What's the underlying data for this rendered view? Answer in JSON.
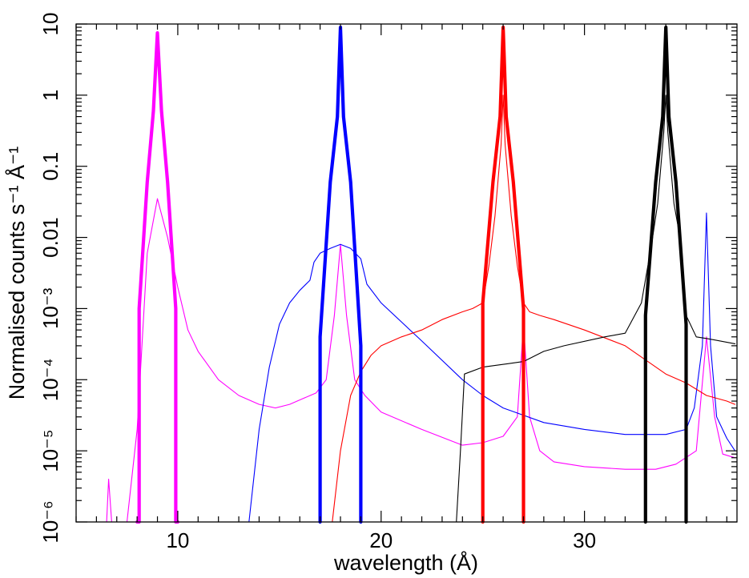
{
  "chart_data": {
    "type": "line",
    "xlabel": "wavelength (Å)",
    "ylabel": "Normalised counts s⁻¹ Å⁻¹",
    "xlim": [
      5,
      37.5
    ],
    "ylim": [
      1e-06,
      10
    ],
    "yscale": "log",
    "xticks": [
      10,
      20,
      30
    ],
    "xtick_labels": [
      "10",
      "20",
      "30"
    ],
    "yticks": [
      1e-06,
      1e-05,
      0.0001,
      0.001,
      0.01,
      0.1,
      1,
      10
    ],
    "ytick_labels": [
      "10⁻⁶",
      "10⁻⁵",
      "10⁻⁴",
      "10⁻³",
      "0.01",
      "0.1",
      "1",
      "10"
    ],
    "grid": false,
    "legend": "none",
    "series": [
      {
        "color": "#ff00ff",
        "style": "thick",
        "x": [
          8.0,
          8.1,
          8.1,
          8.5,
          8.8,
          9.0,
          9.2,
          9.5,
          9.9,
          9.9,
          10.0
        ],
        "y": [
          1e-06,
          1e-06,
          0.001,
          0.06,
          0.6,
          7.5,
          0.6,
          0.06,
          0.001,
          1e-06,
          1e-06
        ]
      },
      {
        "color": "#0000ff",
        "style": "thick",
        "x": [
          17.0,
          17.0,
          17.5,
          17.85,
          18.0,
          18.15,
          18.5,
          19.0,
          19.0
        ],
        "y": [
          1e-06,
          0.0004,
          0.06,
          0.5,
          9.0,
          0.5,
          0.06,
          0.0003,
          1e-06
        ]
      },
      {
        "color": "#ff0000",
        "style": "thick",
        "x": [
          25.0,
          25.0,
          25.5,
          25.85,
          26.0,
          26.15,
          26.5,
          27.0,
          27.0
        ],
        "y": [
          1e-06,
          0.0012,
          0.06,
          0.5,
          9.0,
          0.5,
          0.06,
          0.001,
          1e-06
        ]
      },
      {
        "color": "#000000",
        "style": "thick",
        "x": [
          33.0,
          33.0,
          33.5,
          33.85,
          34.0,
          34.15,
          34.5,
          35.0,
          35.0
        ],
        "y": [
          1e-06,
          0.0008,
          0.06,
          0.5,
          9.0,
          0.5,
          0.06,
          0.0006,
          1e-06
        ]
      },
      {
        "color": "#ff00ff",
        "style": "thin",
        "x": [
          6.5,
          6.6,
          6.75,
          7.5,
          8.0,
          8.5,
          9.0,
          9.5,
          10.0,
          10.5,
          11.0,
          12.0,
          13.0,
          14.0,
          14.8,
          15.5,
          16.2,
          16.8,
          17.3,
          17.7,
          18.0,
          18.3,
          18.7,
          19.2,
          20.0,
          22.0,
          24.0,
          25.0,
          26.0,
          26.7,
          27.0,
          27.3,
          27.8,
          28.5,
          30.0,
          32.0,
          33.5,
          34.5,
          35.5,
          36.0,
          36.4,
          36.8,
          37.4
        ],
        "y": [
          1e-06,
          4e-06,
          1e-06,
          1e-06,
          2e-05,
          0.006,
          0.035,
          0.01,
          0.002,
          0.0005,
          0.00025,
          0.0001,
          6e-05,
          4.5e-05,
          4e-05,
          4.5e-05,
          5.5e-05,
          6.5e-05,
          0.0001,
          0.0008,
          0.008,
          0.0008,
          0.0001,
          6e-05,
          3.5e-05,
          2e-05,
          1.2e-05,
          1.3e-05,
          1.6e-05,
          3e-05,
          0.0006,
          3e-05,
          1e-05,
          7e-06,
          6e-06,
          5.5e-06,
          5.5e-06,
          6.5e-06,
          1e-05,
          0.0004,
          3e-05,
          9e-06,
          8e-06
        ]
      },
      {
        "color": "#0000ff",
        "style": "thin",
        "x": [
          13.5,
          14.0,
          14.5,
          15.0,
          15.5,
          16.0,
          16.5,
          16.7,
          17.0,
          17.5,
          18.0,
          18.5,
          19.0,
          19.3,
          20.0,
          22.0,
          24.0,
          25.0,
          26.0,
          28.0,
          30.0,
          32.0,
          34.0,
          35.0,
          35.4,
          35.8,
          36.0,
          36.2,
          36.5,
          37.0,
          37.4
        ],
        "y": [
          1e-06,
          2e-05,
          0.00015,
          0.0006,
          0.0012,
          0.0018,
          0.0025,
          0.0045,
          0.006,
          0.007,
          0.008,
          0.007,
          0.005,
          0.0022,
          0.0012,
          0.00035,
          0.0001,
          6e-05,
          4e-05,
          2.5e-05,
          2e-05,
          1.7e-05,
          1.7e-05,
          2e-05,
          4e-05,
          0.0003,
          0.022,
          0.0003,
          3e-05,
          1.5e-05,
          1e-05
        ]
      },
      {
        "color": "#ff0000",
        "style": "thin",
        "x": [
          17.6,
          18.0,
          18.5,
          19.0,
          19.5,
          20.0,
          21.0,
          22.0,
          23.0,
          24.0,
          24.5,
          25.0,
          25.3,
          25.6,
          25.9,
          26.0,
          26.1,
          26.4,
          26.7,
          27.0,
          27.3,
          27.8,
          28.5,
          30.0,
          32.0,
          34.0,
          35.0,
          36.0,
          37.0,
          37.4
        ],
        "y": [
          1e-06,
          1e-05,
          6e-05,
          0.00013,
          0.00022,
          0.0003,
          0.0004,
          0.0005,
          0.0007,
          0.0009,
          0.001,
          0.0012,
          0.004,
          0.02,
          0.2,
          1.0,
          0.2,
          0.02,
          0.004,
          0.0012,
          0.0009,
          0.0008,
          0.0007,
          0.0005,
          0.0003,
          0.00012,
          9e-05,
          6e-05,
          5e-05,
          4.5e-05
        ]
      },
      {
        "color": "#000000",
        "style": "thin",
        "x": [
          23.7,
          23.9,
          24.1,
          25.0,
          27.0,
          28.0,
          29.0,
          31.0,
          32.0,
          32.8,
          33.3,
          33.6,
          33.9,
          34.0,
          34.1,
          34.4,
          34.7,
          35.0,
          35.5,
          36.0,
          37.4
        ],
        "y": [
          1e-06,
          1e-05,
          0.00012,
          0.00015,
          0.00018,
          0.00025,
          0.0003,
          0.0004,
          0.00045,
          0.0012,
          0.008,
          0.03,
          0.3,
          1.0,
          0.3,
          0.03,
          0.01,
          0.0008,
          0.0004,
          0.00038,
          0.00032
        ]
      }
    ]
  }
}
